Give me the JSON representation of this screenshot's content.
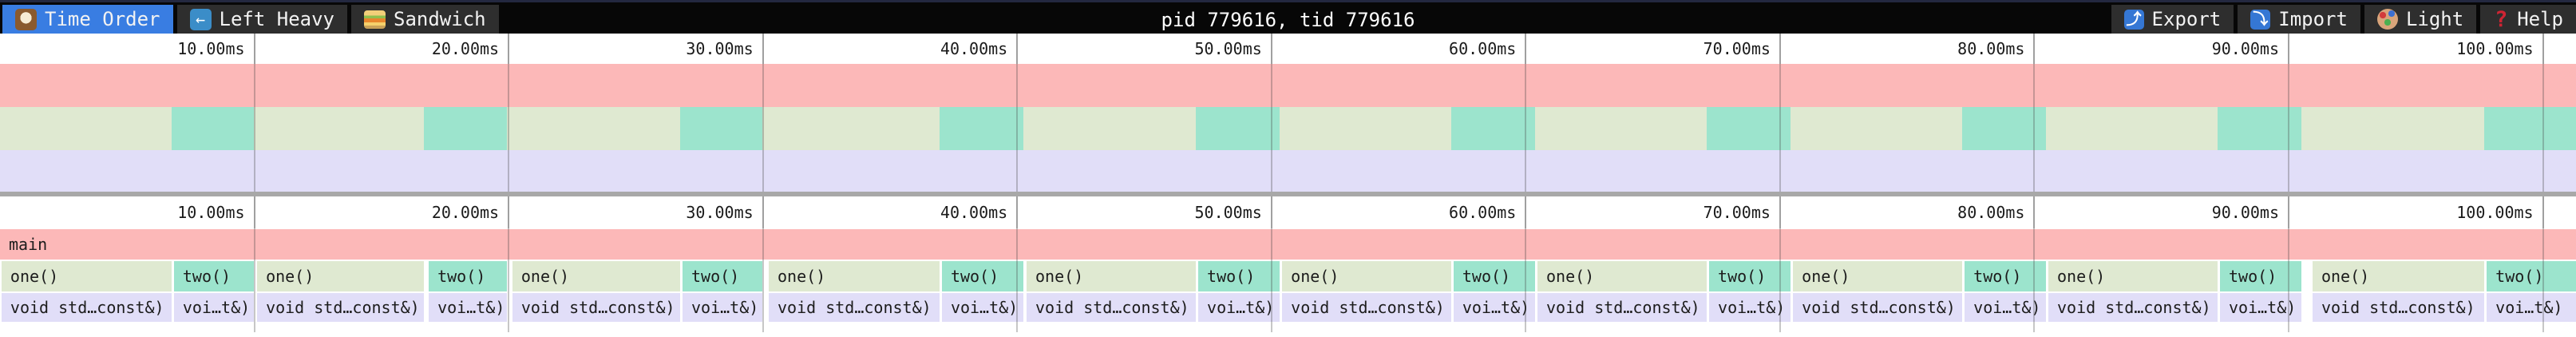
{
  "topbar": {
    "title": "pid 779616, tid 779616",
    "tabs": [
      {
        "label": "Time Order",
        "icon": "clock-icon",
        "active": true
      },
      {
        "label": "Left Heavy",
        "icon": "left-arrow-icon",
        "active": false
      },
      {
        "label": "Sandwich",
        "icon": "sandwich-icon",
        "active": false
      }
    ],
    "actions": [
      {
        "label": "Export",
        "icon": "export-icon"
      },
      {
        "label": "Import",
        "icon": "import-icon"
      },
      {
        "label": "Light",
        "icon": "palette-icon"
      },
      {
        "label": "Help",
        "icon": "help-icon"
      }
    ]
  },
  "icons": {
    "left_arrow_glyph": "←",
    "export_glyph": "⤴",
    "import_glyph": "⤵",
    "help_glyph": "?"
  },
  "colors": {
    "selected_tab": "#397de2",
    "frame_main": "#fcb8b8",
    "frame_one": "#dfe9d1",
    "frame_two": "#9ce4cd",
    "frame_child": "#e1def8",
    "gridline": "#7a7a7a",
    "topbar_bg": "#070707",
    "tab_bg": "#2e2e2e"
  },
  "chart_data": {
    "type": "flamegraph-timeline",
    "total_ms": 101.3,
    "ticks": [
      {
        "ms": 10,
        "label": "10.00ms"
      },
      {
        "ms": 20,
        "label": "20.00ms"
      },
      {
        "ms": 30,
        "label": "30.00ms"
      },
      {
        "ms": 40,
        "label": "40.00ms"
      },
      {
        "ms": 50,
        "label": "50.00ms"
      },
      {
        "ms": 60,
        "label": "60.00ms"
      },
      {
        "ms": 70,
        "label": "70.00ms"
      },
      {
        "ms": 80,
        "label": "80.00ms"
      },
      {
        "ms": 90,
        "label": "90.00ms"
      },
      {
        "ms": 100,
        "label": "100.00ms"
      }
    ],
    "frames": {
      "root": "main",
      "level1_one": "one()",
      "level1_two": "two()",
      "level2_one": "void std…const&)",
      "level2_two": "voi…t&)"
    },
    "iterations": [
      {
        "one": [
          0.06,
          6.75
        ],
        "two": [
          6.84,
          9.98
        ]
      },
      {
        "one": [
          10.11,
          16.67
        ],
        "two": [
          16.86,
          19.94
        ]
      },
      {
        "one": [
          20.15,
          26.75
        ],
        "two": [
          26.84,
          29.98
        ]
      },
      {
        "one": [
          30.23,
          36.95
        ],
        "two": [
          37.04,
          40.24
        ]
      },
      {
        "one": [
          40.37,
          47.02
        ],
        "two": [
          47.12,
          50.32
        ]
      },
      {
        "one": [
          50.42,
          57.07
        ],
        "two": [
          57.16,
          60.37
        ]
      },
      {
        "one": [
          60.46,
          67.12
        ],
        "two": [
          67.21,
          70.41
        ]
      },
      {
        "one": [
          70.51,
          77.16
        ],
        "two": [
          77.26,
          80.46
        ]
      },
      {
        "one": [
          80.55,
          87.21
        ],
        "two": [
          87.3,
          90.5
        ]
      },
      {
        "one": [
          90.94,
          97.69
        ],
        "two": [
          97.79,
          101.3
        ]
      }
    ]
  }
}
